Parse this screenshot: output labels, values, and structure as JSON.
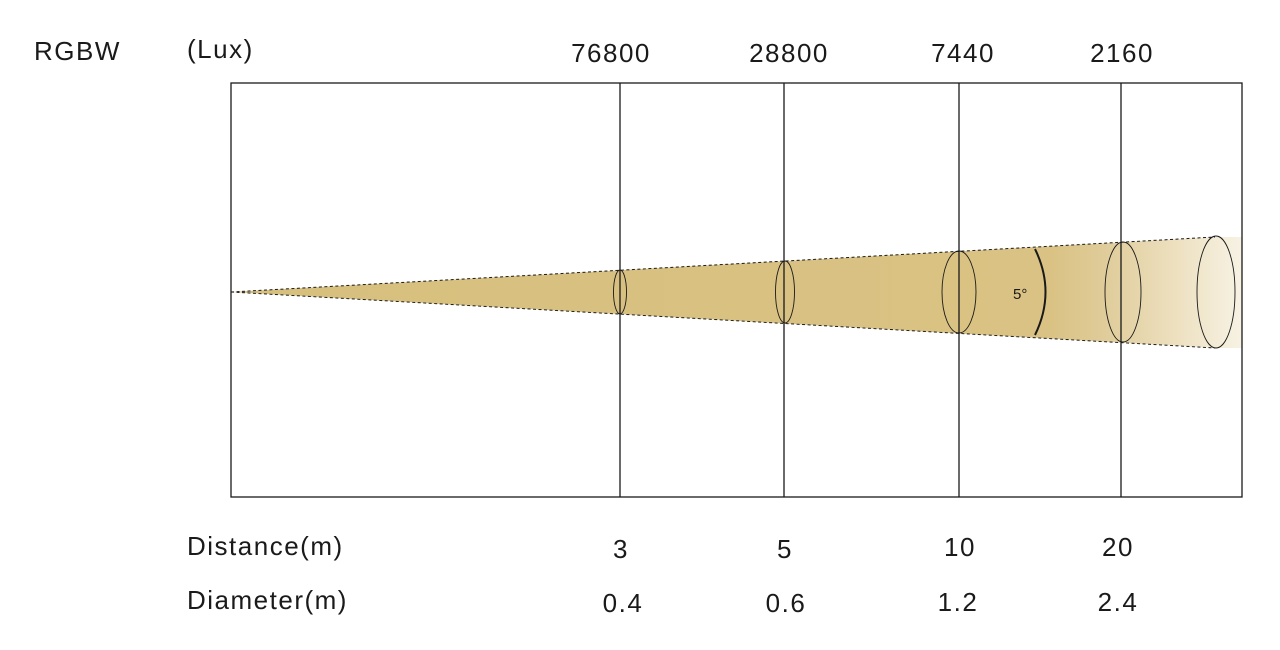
{
  "title": "RGBW",
  "unit_label": "(Lux)",
  "beam_angle_label": "5°",
  "colors": {
    "beam": "#d7bf7e",
    "frame": "#1a1a1a",
    "text": "#1a1a1a"
  },
  "rows": {
    "distance_label": "Distance(m)",
    "diameter_label": "Diameter(m)"
  },
  "markers": [
    {
      "lux": "76800",
      "distance": "3",
      "diameter": "0.4"
    },
    {
      "lux": "28800",
      "distance": "5",
      "diameter": "0.6"
    },
    {
      "lux": "7440",
      "distance": "10",
      "diameter": "1.2"
    },
    {
      "lux": "2160",
      "distance": "20",
      "diameter": "2.4"
    }
  ]
}
